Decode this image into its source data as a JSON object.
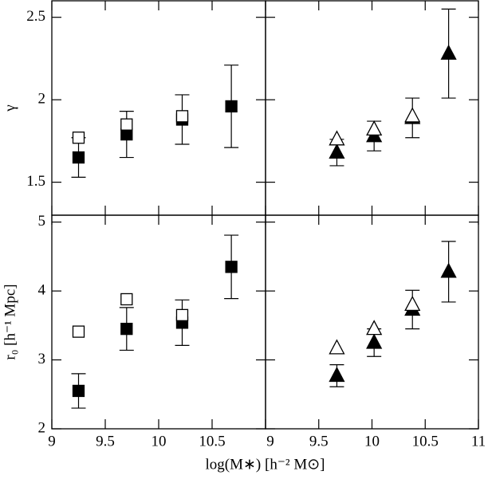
{
  "chart_data": [
    {
      "type": "scatter",
      "ylabel": "γ",
      "xlim": [
        9,
        11
      ],
      "ylim": [
        1.3,
        2.6
      ],
      "xticks": [
        9,
        9.5,
        10,
        10.5
      ],
      "yticks": [
        1.5,
        2,
        2.5
      ],
      "x": [
        9.25,
        9.7,
        10.22,
        10.68
      ],
      "series": [
        {
          "marker": "square",
          "filled": true,
          "color": "#000000",
          "values": [
            1.65,
            1.79,
            1.88,
            1.96
          ],
          "errors": [
            0.12,
            0.14,
            0.15,
            0.25
          ]
        },
        {
          "marker": "square",
          "filled": false,
          "color": "#000000",
          "values": [
            1.77,
            1.85,
            1.9,
            null
          ]
        }
      ]
    },
    {
      "type": "scatter",
      "xlim": [
        9,
        11
      ],
      "ylim": [
        1.3,
        2.6
      ],
      "xticks": [
        9,
        9.5,
        10,
        10.5,
        11
      ],
      "yticks": [
        1.5,
        2,
        2.5
      ],
      "x": [
        9.67,
        10.02,
        10.38,
        10.72
      ],
      "series": [
        {
          "marker": "triangle",
          "filled": true,
          "color": "#000000",
          "values": [
            1.68,
            1.78,
            1.89,
            2.28
          ],
          "errors": [
            0.08,
            0.09,
            0.12,
            0.27
          ]
        },
        {
          "marker": "triangle",
          "filled": false,
          "color": "#000000",
          "values": [
            1.76,
            1.82,
            1.9,
            null
          ]
        }
      ]
    },
    {
      "type": "scatter",
      "ylabel": "r₀ [h⁻¹ Mpc]",
      "xlabel": "log(M∗) [h⁻² M⊙]",
      "xlim": [
        9,
        11
      ],
      "ylim": [
        2,
        5.1
      ],
      "xticks": [
        9,
        9.5,
        10,
        10.5
      ],
      "yticks": [
        2,
        3,
        4,
        5
      ],
      "x": [
        9.25,
        9.7,
        10.22,
        10.68
      ],
      "series": [
        {
          "marker": "square",
          "filled": true,
          "color": "#000000",
          "values": [
            2.55,
            3.45,
            3.54,
            4.35
          ],
          "errors": [
            0.25,
            0.31,
            0.33,
            0.46
          ]
        },
        {
          "marker": "square",
          "filled": false,
          "color": "#000000",
          "values": [
            3.41,
            3.88,
            3.65,
            null
          ]
        }
      ]
    },
    {
      "type": "scatter",
      "xlim": [
        9,
        11
      ],
      "ylim": [
        2,
        5.1
      ],
      "xticks": [
        9,
        9.5,
        10,
        10.5,
        11
      ],
      "yticks": [
        2,
        3,
        4,
        5
      ],
      "x": [
        9.67,
        10.02,
        10.38,
        10.72
      ],
      "series": [
        {
          "marker": "triangle",
          "filled": true,
          "color": "#000000",
          "values": [
            2.77,
            3.25,
            3.73,
            4.28
          ],
          "errors": [
            0.16,
            0.2,
            0.28,
            0.44
          ]
        },
        {
          "marker": "triangle",
          "filled": false,
          "color": "#000000",
          "values": [
            3.17,
            3.45,
            3.8,
            null
          ]
        }
      ]
    }
  ]
}
